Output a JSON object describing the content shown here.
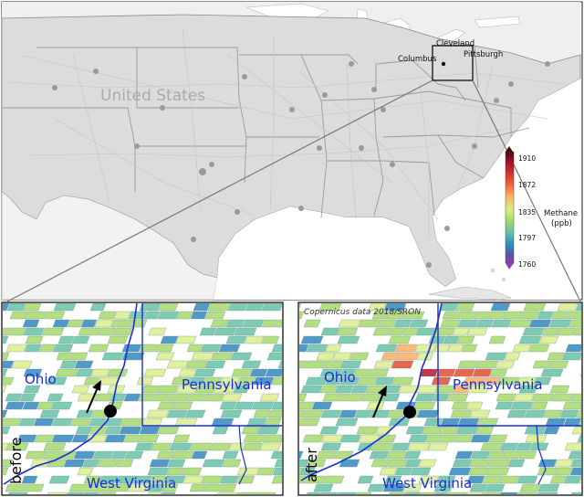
{
  "map": {
    "country_label": "United States",
    "cities": [
      {
        "name": "Cleveland"
      },
      {
        "name": "Columbus"
      },
      {
        "name": "Pittsburgh"
      }
    ]
  },
  "colorbar": {
    "title_line1": "Methane",
    "title_line2": "(ppb)",
    "ticks": [
      "1910",
      "1872",
      "1835",
      "1797",
      "1760"
    ],
    "colors": [
      "#4a0c0c",
      "#b2182b",
      "#e34a33",
      "#fdae61",
      "#d9ef8b",
      "#a6d96a",
      "#66c2a5",
      "#3288bd",
      "#5e4fa2",
      "#8e44ad"
    ]
  },
  "panels": {
    "before": {
      "side_label": "before",
      "state_labels": [
        {
          "name": "Ohio"
        },
        {
          "name": "Pennsylvania"
        },
        {
          "name": "West Virginia"
        }
      ]
    },
    "after": {
      "side_label": "after",
      "credit": "Copernicus data 2018/SRON",
      "state_labels": [
        {
          "name": "Ohio"
        },
        {
          "name": "Pennsylvania"
        },
        {
          "name": "West Virginia"
        }
      ]
    }
  }
}
